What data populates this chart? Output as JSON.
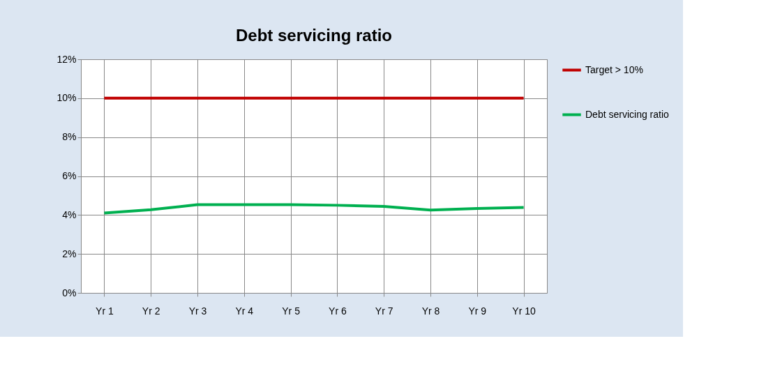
{
  "chart_data": {
    "type": "line",
    "title": "Debt servicing ratio",
    "categories": [
      "Yr 1",
      "Yr 2",
      "Yr 3",
      "Yr 4",
      "Yr 5",
      "Yr 6",
      "Yr 7",
      "Yr 8",
      "Yr 9",
      "Yr 10"
    ],
    "series": [
      {
        "name": "Target > 10%",
        "color": "#c00000",
        "values": [
          10,
          10,
          10,
          10,
          10,
          10,
          10,
          10,
          10,
          10
        ]
      },
      {
        "name": "Debt servicing ratio",
        "color": "#00b050",
        "values": [
          4.1,
          4.27,
          4.53,
          4.53,
          4.53,
          4.5,
          4.44,
          4.25,
          4.33,
          4.39
        ]
      }
    ],
    "ylim": [
      0,
      12
    ],
    "yticks": [
      {
        "value": 0,
        "label": "0%"
      },
      {
        "value": 2,
        "label": "2%"
      },
      {
        "value": 4,
        "label": "4%"
      },
      {
        "value": 6,
        "label": "6%"
      },
      {
        "value": 8,
        "label": "8%"
      },
      {
        "value": 10,
        "label": "10%"
      },
      {
        "value": 12,
        "label": "12%"
      }
    ],
    "grid": true,
    "legend": "right",
    "marker": "none",
    "line_style": "solid"
  }
}
